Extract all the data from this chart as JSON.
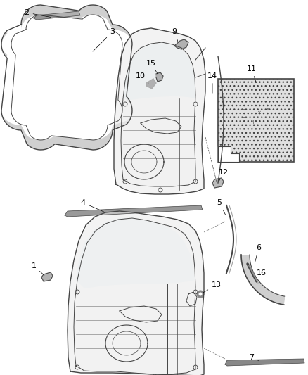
{
  "background_color": "#ffffff",
  "line_color": "#444444",
  "gray_color": "#888888",
  "light_gray": "#cccccc",
  "font_size": 8,
  "dpi": 100,
  "figsize": [
    4.38,
    5.33
  ]
}
